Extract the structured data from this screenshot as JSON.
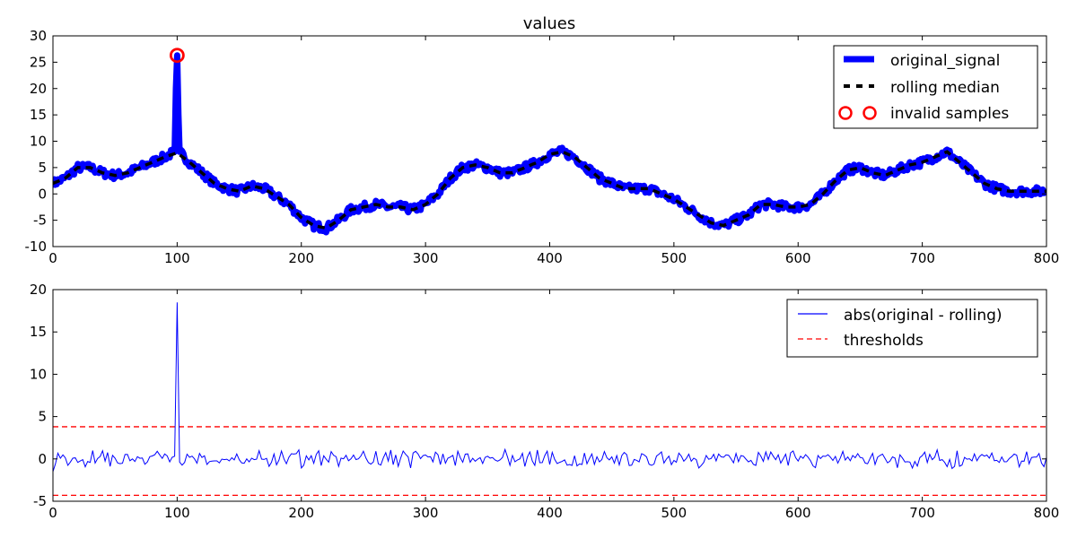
{
  "chart_data": [
    {
      "type": "line",
      "title": "values",
      "xlim": [
        0,
        800
      ],
      "ylim": [
        -10,
        30
      ],
      "xticks": [
        0,
        100,
        200,
        300,
        400,
        500,
        600,
        700,
        800
      ],
      "yticks": [
        -10,
        -5,
        0,
        5,
        10,
        15,
        20,
        25,
        30
      ],
      "grid": false,
      "legend_position": "top-right",
      "series": [
        {
          "name": "original_signal",
          "style": "thick solid",
          "color": "#0000ff",
          "x": [
            0,
            10,
            20,
            30,
            40,
            50,
            60,
            70,
            80,
            90,
            98,
            99,
            100,
            101,
            102,
            110,
            120,
            130,
            140,
            150,
            160,
            170,
            180,
            190,
            200,
            210,
            220,
            230,
            240,
            250,
            260,
            270,
            280,
            290,
            300,
            310,
            320,
            330,
            340,
            350,
            360,
            370,
            380,
            390,
            400,
            410,
            420,
            430,
            440,
            450,
            460,
            470,
            480,
            490,
            500,
            510,
            520,
            530,
            540,
            550,
            560,
            570,
            580,
            590,
            600,
            610,
            620,
            630,
            640,
            650,
            660,
            670,
            680,
            690,
            700,
            710,
            720,
            730,
            740,
            750,
            760,
            770,
            780,
            790,
            800
          ],
          "y": [
            2,
            3,
            5,
            5,
            4,
            3.5,
            4,
            5,
            6,
            7,
            8,
            20,
            26.3,
            15,
            8,
            6,
            4,
            2,
            1,
            0.5,
            1.5,
            1,
            -0.5,
            -2,
            -4.5,
            -6,
            -6.5,
            -5,
            -3,
            -2.5,
            -2,
            -2.5,
            -2.5,
            -3,
            -2,
            0,
            3,
            5,
            5.5,
            5,
            4,
            4,
            5,
            6,
            7.5,
            8,
            7,
            5,
            3,
            2,
            1,
            1,
            1,
            0,
            -1,
            -2.5,
            -4,
            -5.5,
            -6,
            -5,
            -4,
            -2,
            -2,
            -2.5,
            -2.5,
            -2,
            0,
            2.5,
            4.5,
            5,
            4,
            3.5,
            4.5,
            5.5,
            6,
            7,
            8,
            6,
            4,
            2,
            1,
            0.5,
            0.5,
            0.5,
            0.5
          ]
        },
        {
          "name": "rolling median",
          "style": "dashed",
          "color": "#000000",
          "x": [
            0,
            10,
            20,
            30,
            40,
            50,
            60,
            70,
            80,
            90,
            100,
            110,
            120,
            130,
            140,
            150,
            160,
            170,
            180,
            190,
            200,
            210,
            220,
            230,
            240,
            250,
            260,
            270,
            280,
            290,
            300,
            310,
            320,
            330,
            340,
            350,
            360,
            370,
            380,
            390,
            400,
            410,
            420,
            430,
            440,
            450,
            460,
            470,
            480,
            490,
            500,
            510,
            520,
            530,
            540,
            550,
            560,
            570,
            580,
            590,
            600,
            610,
            620,
            630,
            640,
            650,
            660,
            670,
            680,
            690,
            700,
            710,
            720,
            730,
            740,
            750,
            760,
            770,
            780,
            790,
            800
          ],
          "y": [
            2,
            3,
            5,
            5,
            4,
            3.5,
            4,
            5,
            6,
            7,
            7.8,
            6,
            4,
            2,
            1,
            0.5,
            1.5,
            1,
            -0.5,
            -2,
            -4.5,
            -6,
            -6.5,
            -5,
            -3,
            -2.5,
            -2,
            -2.5,
            -2.5,
            -3,
            -2,
            0,
            3,
            5,
            5.5,
            5,
            4,
            4,
            5,
            6,
            7.5,
            8,
            7,
            5,
            3,
            2,
            1,
            1,
            1,
            0,
            -1,
            -2.5,
            -4,
            -5.5,
            -6,
            -5,
            -4,
            -2,
            -2,
            -2.5,
            -2.5,
            -2,
            0,
            2.5,
            4.5,
            5,
            4,
            3.5,
            4.5,
            5.5,
            6,
            7,
            8,
            6,
            4,
            2,
            1,
            0.5,
            0.5,
            0.5,
            0.5
          ]
        },
        {
          "name": "invalid samples",
          "style": "markers open circle",
          "color": "#ff0000",
          "x": [
            100
          ],
          "y": [
            26.3
          ]
        }
      ]
    },
    {
      "type": "line",
      "title": "",
      "xlim": [
        0,
        800
      ],
      "ylim": [
        -5,
        20
      ],
      "xticks": [
        0,
        100,
        200,
        300,
        400,
        500,
        600,
        700,
        800
      ],
      "yticks": [
        -5,
        0,
        5,
        10,
        15,
        20
      ],
      "grid": false,
      "legend_position": "top-right",
      "series": [
        {
          "name": "abs(original - rolling)",
          "style": "thin solid",
          "color": "#0000ff",
          "noise_amplitude": 0.7,
          "spike": {
            "x": 100,
            "y": 18.5
          }
        },
        {
          "name": "thresholds",
          "style": "dashed",
          "color": "#ff0000",
          "levels": [
            3.8,
            -4.3
          ]
        }
      ]
    }
  ]
}
